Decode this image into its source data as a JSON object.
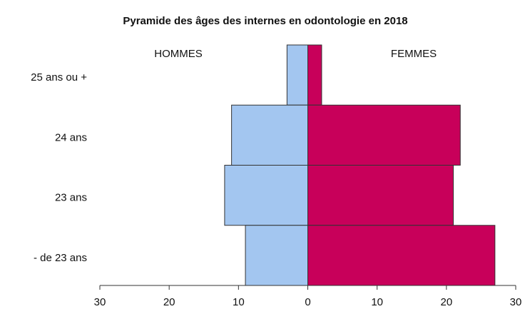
{
  "chart_data": {
    "type": "pyramid",
    "title": "Pyramide des âges des internes en odontologie en 2018",
    "categories": [
      "25 ans ou +",
      "24 ans",
      "23 ans",
      "- de 23 ans"
    ],
    "series": [
      {
        "name": "HOMMES",
        "color": "#a3c6f0",
        "values": [
          -3,
          -11,
          -12,
          -9
        ]
      },
      {
        "name": "FEMMES",
        "color": "#c8005a",
        "values": [
          2,
          22,
          21,
          27
        ]
      }
    ],
    "xlim": [
      -30,
      30
    ],
    "xticks": [
      {
        "value": -30,
        "label": "30"
      },
      {
        "value": -20,
        "label": "20"
      },
      {
        "value": -10,
        "label": "10"
      },
      0,
      10,
      20,
      30
    ]
  }
}
